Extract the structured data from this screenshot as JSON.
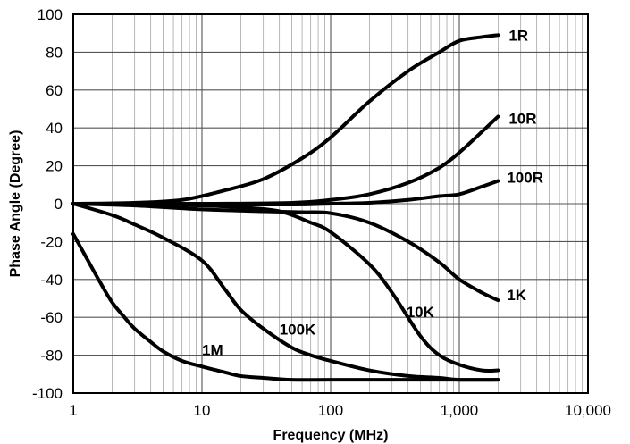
{
  "chart_data": {
    "type": "line",
    "title": "",
    "xlabel": "Frequency (MHz)",
    "ylabel": "Phase Angle (Degree)",
    "x_scale": "log",
    "xlim": [
      1,
      10000
    ],
    "ylim": [
      -100,
      100
    ],
    "grid": true,
    "legend": "inline labels at line ends",
    "x_ticks": [
      1,
      10,
      100,
      1000,
      10000
    ],
    "x_tick_labels": [
      "1",
      "10",
      "100",
      "1,000",
      "10,000"
    ],
    "y_ticks": [
      100,
      80,
      60,
      40,
      20,
      0,
      -20,
      -40,
      -60,
      -80,
      -100
    ],
    "y_tick_labels": [
      "100",
      "80",
      "60",
      "40",
      "20",
      "0",
      "-20",
      "-40",
      "-60",
      "-80",
      "-100"
    ],
    "series": [
      {
        "name": "1R",
        "x": [
          1,
          3,
          7,
          15,
          30,
          60,
          100,
          200,
          400,
          700,
          1000,
          1500,
          2000
        ],
        "y": [
          0,
          0.5,
          2,
          7,
          13,
          24,
          35,
          54,
          70,
          80,
          86,
          88,
          89
        ]
      },
      {
        "name": "10R",
        "x": [
          1,
          10,
          50,
          100,
          200,
          400,
          700,
          1000,
          1500,
          2000
        ],
        "y": [
          0,
          0,
          0.5,
          2,
          5,
          11,
          19,
          27,
          38,
          46
        ]
      },
      {
        "name": "100R",
        "x": [
          1,
          10,
          50,
          100,
          200,
          400,
          700,
          1000,
          1500,
          2000
        ],
        "y": [
          0,
          -0.5,
          -0.5,
          0,
          0.5,
          2,
          4,
          5,
          9,
          12
        ]
      },
      {
        "name": "1K",
        "x": [
          1,
          3,
          10,
          30,
          60,
          100,
          200,
          400,
          700,
          1000,
          1500,
          2000
        ],
        "y": [
          0,
          -1,
          -3,
          -4,
          -4.5,
          -5,
          -10,
          -20,
          -31,
          -40,
          -47,
          -51
        ]
      },
      {
        "name": "10K",
        "x": [
          1,
          3,
          10,
          20,
          40,
          70,
          100,
          200,
          300,
          500,
          700,
          1000,
          1500,
          2000
        ],
        "y": [
          0,
          -0.5,
          -1,
          -2,
          -4,
          -10,
          -15,
          -32,
          -47,
          -70,
          -80,
          -85,
          -88,
          -88
        ]
      },
      {
        "name": "100K",
        "x": [
          1,
          2,
          3,
          5,
          10,
          15,
          20,
          30,
          50,
          70,
          100,
          200,
          400,
          700,
          1000,
          2000
        ],
        "y": [
          0,
          -6,
          -11,
          -18,
          -30,
          -45,
          -56,
          -66,
          -76,
          -80,
          -83,
          -88,
          -91,
          -92,
          -93,
          -93
        ]
      },
      {
        "name": "1M",
        "x": [
          1,
          1.3,
          1.6,
          2,
          2.5,
          3,
          4,
          5,
          7,
          10,
          15,
          20,
          30,
          50,
          100,
          300,
          1000,
          2000
        ],
        "y": [
          -16,
          -30,
          -41,
          -52,
          -60,
          -66,
          -73,
          -78,
          -83,
          -86,
          -89,
          -91,
          -92,
          -93,
          -93,
          -93,
          -93,
          -93
        ]
      }
    ]
  },
  "axis": {
    "xlabel": "Frequency (MHz)",
    "ylabel": "Phase Angle (Degree)"
  }
}
